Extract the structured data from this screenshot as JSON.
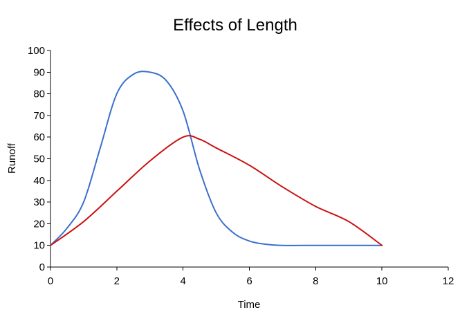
{
  "chart_data": {
    "type": "line",
    "title": "Effects of Length",
    "xlabel": "Time",
    "ylabel": "Runoff",
    "xlim": [
      0,
      12
    ],
    "ylim": [
      0,
      100
    ],
    "x_ticks": [
      0,
      2,
      4,
      6,
      8,
      10,
      12
    ],
    "y_ticks": [
      0,
      10,
      20,
      30,
      40,
      50,
      60,
      70,
      80,
      90,
      100
    ],
    "grid": false,
    "legend": "none",
    "series": [
      {
        "color": "#3a6fcc",
        "x": [
          0,
          0.5,
          1,
          1.5,
          2,
          2.5,
          3,
          3.5,
          4,
          4.5,
          5,
          5.5,
          6,
          6.5,
          7,
          8,
          9,
          10
        ],
        "y": [
          10,
          18,
          30,
          55,
          80,
          89,
          90,
          86,
          72,
          45,
          25,
          16,
          12,
          10.5,
          10,
          10,
          10,
          10
        ]
      },
      {
        "color": "#cc1010",
        "x": [
          0,
          1,
          2,
          3,
          4,
          4.5,
          5,
          6,
          7,
          8,
          9,
          10
        ],
        "y": [
          10,
          21,
          35,
          49,
          60,
          59,
          55,
          47,
          37,
          28,
          21,
          10
        ]
      }
    ]
  }
}
